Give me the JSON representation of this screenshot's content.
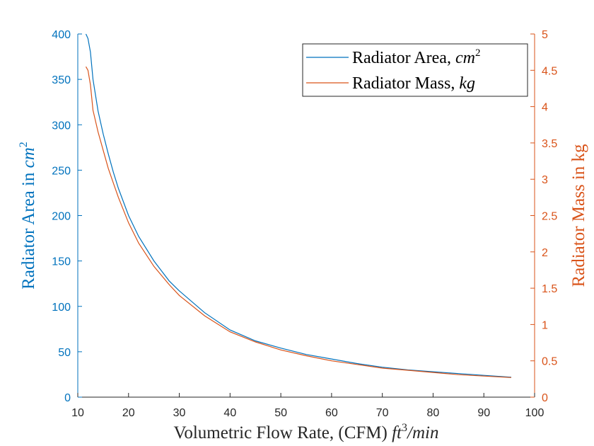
{
  "chart_data": {
    "type": "line",
    "title": "",
    "xlabel": "Volumetric Flow Rate, (CFM) ft³/min",
    "xlabel_parts": {
      "text": "Volumetric Flow Rate, (CFM) ",
      "math": "ft",
      "sup": "3",
      "math2": "/min"
    },
    "ylabel_left": "Radiator Area in cm²",
    "ylabel_left_parts": {
      "text": "Radiator Area in ",
      "math": "cm",
      "sup": "2"
    },
    "ylabel_right": "Radiator Mass in kg",
    "xlim": [
      10,
      100
    ],
    "ylim_left": [
      0,
      400
    ],
    "ylim_right": [
      0,
      5
    ],
    "x_ticks": [
      10,
      20,
      30,
      40,
      50,
      60,
      70,
      80,
      90,
      100
    ],
    "y_left_ticks": [
      0,
      50,
      100,
      150,
      200,
      250,
      300,
      350,
      400
    ],
    "y_right_ticks": [
      "0",
      "0.5",
      "1",
      "1.5",
      "2",
      "2.5",
      "3",
      "3.5",
      "4",
      "4.5",
      "5"
    ],
    "grid": false,
    "legend_position": "top-right",
    "series": [
      {
        "name": "Radiator Area, cm²",
        "name_parts": {
          "text": "Radiator Area, ",
          "math": "cm",
          "sup": "2"
        },
        "axis": "left",
        "color": "#0072BD",
        "x": [
          11.6,
          12,
          12.5,
          13,
          14,
          15,
          16,
          17,
          18,
          20,
          22,
          25,
          28,
          30,
          35,
          40,
          45,
          50,
          55,
          60,
          65,
          70,
          75,
          80,
          85,
          90,
          95.4
        ],
        "y": [
          400,
          395,
          380,
          350,
          315,
          290,
          268,
          248,
          230,
          200,
          177,
          150,
          128,
          117,
          93,
          74,
          62,
          54,
          47,
          42,
          37,
          33,
          30,
          28,
          26,
          24,
          22
        ]
      },
      {
        "name": "Radiator Mass, kg",
        "name_parts": {
          "text": "Radiator Mass, ",
          "math": "kg"
        },
        "axis": "right",
        "color": "#D95319",
        "x": [
          11.6,
          12,
          12.5,
          13,
          14,
          15,
          16,
          17,
          18,
          20,
          22,
          25,
          28,
          30,
          35,
          40,
          45,
          50,
          55,
          60,
          65,
          70,
          75,
          80,
          85,
          90,
          95.4
        ],
        "y": [
          4.55,
          4.5,
          4.3,
          3.95,
          3.65,
          3.4,
          3.15,
          2.95,
          2.75,
          2.4,
          2.12,
          1.8,
          1.55,
          1.4,
          1.12,
          0.9,
          0.76,
          0.65,
          0.57,
          0.5,
          0.45,
          0.4,
          0.37,
          0.34,
          0.31,
          0.29,
          0.27
        ]
      }
    ]
  }
}
